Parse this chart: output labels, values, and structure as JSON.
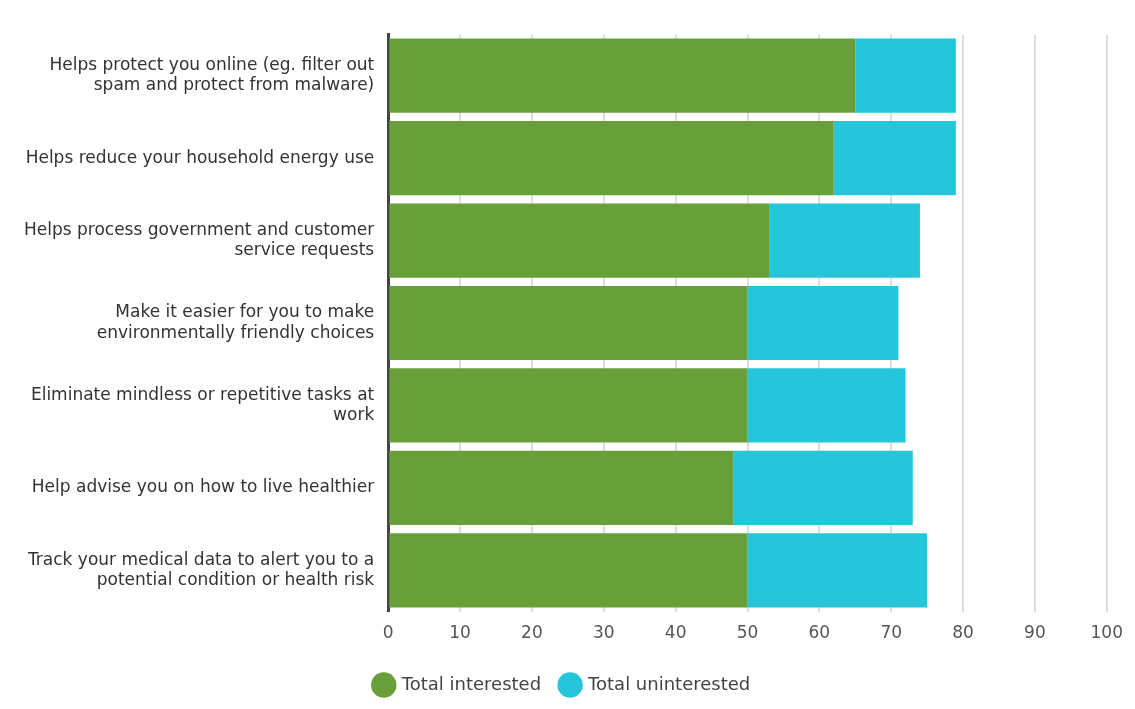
{
  "chart_data": {
    "type": "bar",
    "orientation": "horizontal",
    "stacked": true,
    "categories": [
      "Helps protect you online (eg. filter out spam and protect from malware)",
      "Helps reduce your household energy use",
      "Helps process government and customer service requests",
      "Make it easier for you to make environmentally friendly choices",
      "Eliminate mindless or repetitive tasks at work",
      "Help advise you on how to live healthier",
      "Track your medical data to alert you to a potential condition or health risk"
    ],
    "series": [
      {
        "name": "Total interested",
        "color": "#689f38",
        "values": [
          65,
          62,
          53,
          50,
          50,
          48,
          50
        ]
      },
      {
        "name": "Total uninterested",
        "color": "#26c6da",
        "values": [
          14,
          17,
          21,
          21,
          22,
          25,
          25
        ]
      }
    ],
    "xlim": [
      0,
      100
    ],
    "xticks": [
      0,
      10,
      20,
      30,
      40,
      50,
      60,
      70,
      80,
      90,
      100
    ],
    "grid": "x",
    "legend": "bottom"
  }
}
